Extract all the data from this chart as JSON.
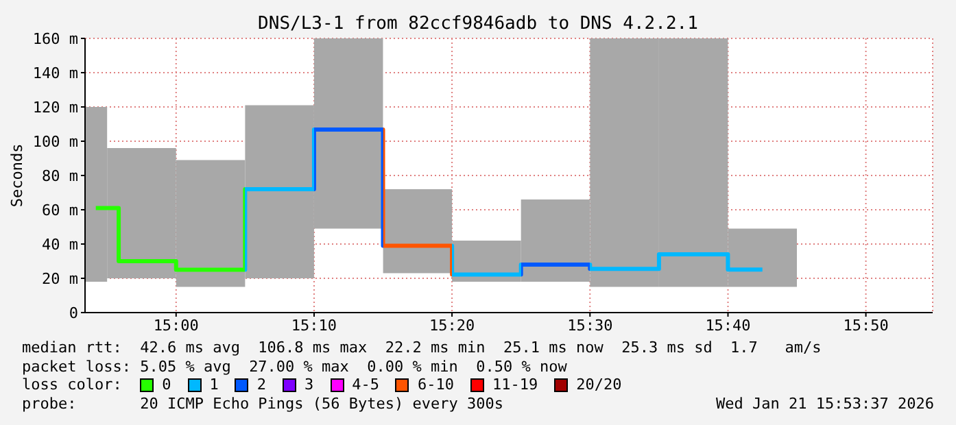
{
  "chart_data": {
    "type": "step",
    "title": "DNS/L3-1 from 82ccf9846adb to DNS 4.2.2.1",
    "ylabel": "Seconds",
    "legend_title": "loss color:",
    "legend": "bottom",
    "grid": true,
    "x": [
      14.903,
      14.9583,
      15.0417,
      15.125,
      15.2083,
      15.2917,
      15.375,
      15.4583,
      15.5417,
      15.625,
      15.7083
    ],
    "xlim": [
      14.89,
      15.914
    ],
    "xticks": [
      {
        "value": 15.0,
        "label": "15:00"
      },
      {
        "value": 15.1667,
        "label": "15:10"
      },
      {
        "value": 15.3333,
        "label": "15:20"
      },
      {
        "value": 15.5,
        "label": "15:30"
      },
      {
        "value": 15.6667,
        "label": "15:40"
      },
      {
        "value": 15.8333,
        "label": "15:50"
      }
    ],
    "ylim": [
      0,
      160
    ],
    "yticks": [
      0,
      {
        "value": 20,
        "label": "20 m"
      },
      {
        "value": 40,
        "label": "40 m"
      },
      {
        "value": 60,
        "label": "60 m"
      },
      {
        "value": 80,
        "label": "80 m"
      },
      {
        "value": 100,
        "label": "100 m"
      },
      {
        "value": 120,
        "label": "120 m"
      },
      {
        "value": 140,
        "label": "140 m"
      },
      {
        "value": 160,
        "label": "160 m"
      }
    ],
    "series": [
      {
        "type": "bar",
        "color": "#a8a8a8",
        "base": [
          18,
          20,
          15,
          20,
          49,
          23,
          18,
          18,
          15,
          15,
          15
        ],
        "values": [
          102,
          76,
          74,
          101,
          111,
          49,
          24,
          48,
          145,
          145,
          34
        ]
      },
      {
        "values": [
          61,
          30,
          25,
          72,
          106.8,
          39,
          22.2,
          28,
          25.5,
          34,
          25.1
        ],
        "colors": [
          "#26ff00",
          "#26ff00",
          "#26ff00",
          "#00b8ff",
          "#0059ff",
          "#ff5500",
          "#00b8ff",
          "#0059ff",
          "#00b8ff",
          "#00b8ff",
          "#00b8ff"
        ]
      },
      {
        "name": "0",
        "color": "#26ff00",
        "values": [
          null,
          null,
          null,
          null,
          null,
          null,
          null,
          null,
          null,
          null,
          null
        ]
      },
      {
        "name": "1",
        "color": "#00b8ff",
        "values": [
          null,
          null,
          null,
          null,
          null,
          null,
          null,
          null,
          null,
          null,
          null
        ]
      },
      {
        "name": "2",
        "color": "#0059ff",
        "values": [
          null,
          null,
          null,
          null,
          null,
          null,
          null,
          null,
          null,
          null,
          null
        ]
      },
      {
        "name": "3",
        "color": "#7e00ff",
        "values": [
          null,
          null,
          null,
          null,
          null,
          null,
          null,
          null,
          null,
          null,
          null
        ]
      },
      {
        "name": "4-5",
        "color": "#ff00ff",
        "values": [
          null,
          null,
          null,
          null,
          null,
          null,
          null,
          null,
          null,
          null,
          null
        ]
      },
      {
        "name": "6-10",
        "color": "#ff5500",
        "values": [
          null,
          null,
          null,
          null,
          null,
          null,
          null,
          null,
          null,
          null,
          null
        ]
      },
      {
        "name": "11-19",
        "color": "#ff0000",
        "values": [
          null,
          null,
          null,
          null,
          null,
          null,
          null,
          null,
          null,
          null,
          null
        ]
      },
      {
        "name": "20/20",
        "color": "#a10000",
        "values": [
          null,
          null,
          null,
          null,
          null,
          null,
          null,
          null,
          null,
          null,
          null
        ]
      }
    ],
    "annotations": [
      "median rtt:  42.6 ms avg  106.8 ms max  22.2 ms min  25.1 ms now  25.3 ms sd  1.7   am/s",
      "packet loss: 5.05 % avg  27.00 % max  0.00 % min  0.50 % now",
      "probe:       20 ICMP Echo Pings (56 Bytes) every 300s",
      "Wed Jan 21 15:53:37 2026"
    ]
  }
}
